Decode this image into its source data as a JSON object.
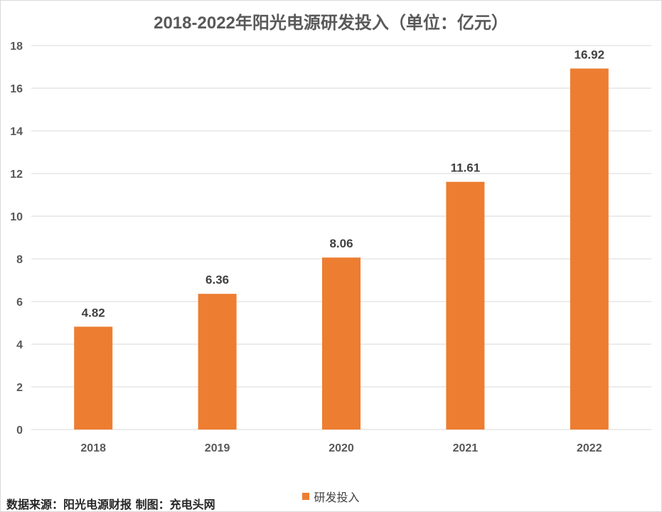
{
  "chart_data": {
    "type": "bar",
    "title": "2018-2022年阳光电源研发投入（单位：亿元）",
    "categories": [
      "2018",
      "2019",
      "2020",
      "2021",
      "2022"
    ],
    "series": [
      {
        "name": "研发投入",
        "values": [
          4.82,
          6.36,
          8.06,
          11.61,
          16.92
        ]
      }
    ],
    "data_labels": [
      "4.82",
      "6.36",
      "8.06",
      "11.61",
      "16.92"
    ],
    "y_ticks": [
      "0",
      "2",
      "4",
      "6",
      "8",
      "10",
      "12",
      "14",
      "16",
      "18"
    ],
    "ylim": [
      0,
      18
    ],
    "grid": true,
    "legend_position": "bottom",
    "xlabel": "",
    "ylabel": ""
  },
  "colors": {
    "bar": "#ED7D31",
    "grid": "#d9d9d9",
    "tick_text": "#595959",
    "label_text": "#404040"
  },
  "footer": {
    "source_text": "数据来源：阳光电源财报 制图：充电头网"
  }
}
